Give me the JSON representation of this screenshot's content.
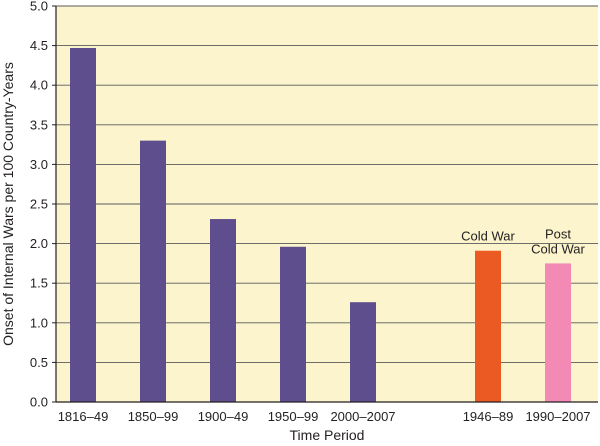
{
  "chart_data": {
    "type": "bar",
    "xlabel": "Time Period",
    "ylabel": "Onset of Internal Wars per 100 Country-Years",
    "ylim": [
      0,
      5.0
    ],
    "yticks": [
      "0.0",
      "0.5",
      "1.0",
      "1.5",
      "2.0",
      "2.5",
      "3.0",
      "3.5",
      "4.0",
      "4.5",
      "5.0"
    ],
    "grid": true,
    "bars": [
      {
        "category": "1816–49",
        "value": 4.47,
        "color": "#5f4e8e"
      },
      {
        "category": "1850–99",
        "value": 3.3,
        "color": "#5f4e8e"
      },
      {
        "category": "1900–49",
        "value": 2.31,
        "color": "#5f4e8e"
      },
      {
        "category": "1950–99",
        "value": 1.96,
        "color": "#5f4e8e"
      },
      {
        "category": "2000–2007",
        "value": 1.26,
        "color": "#5f4e8e"
      },
      {
        "category": "1946–89",
        "value": 1.91,
        "color": "#ec5a24",
        "annotation": [
          "Cold War"
        ]
      },
      {
        "category": "1990–2007",
        "value": 1.75,
        "color": "#f28ab5",
        "annotation": [
          "Post",
          "Cold War"
        ]
      }
    ],
    "colors": {
      "background": "#fbf4cc",
      "gridline": "#5a5a5a",
      "axis": "#231f20"
    }
  }
}
